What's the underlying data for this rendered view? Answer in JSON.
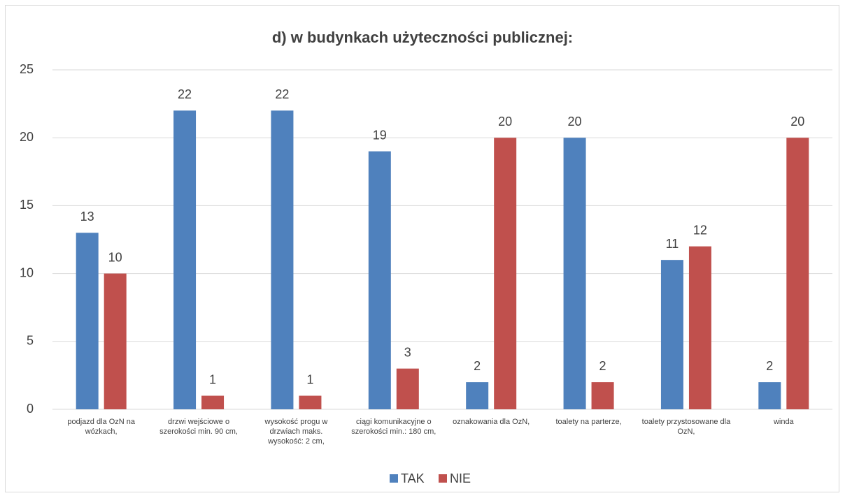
{
  "chart_data": {
    "type": "bar",
    "title": "d)  w budynkach użyteczności publicznej:",
    "categories": [
      "podjazd dla OzN na wózkach,",
      "drzwi wejściowe o szerokości min. 90 cm,",
      "wysokość progu w drzwiach maks. wysokość: 2 cm,",
      "ciągi komunikacyjne o szerokości min.: 180 cm,",
      "oznakowania dla OzN,",
      "toalety na parterze,",
      "toalety przystosowane dla OzN,",
      "winda"
    ],
    "series": [
      {
        "name": "TAK",
        "color": "#4f81bd",
        "values": [
          13,
          22,
          22,
          19,
          2,
          20,
          11,
          2
        ]
      },
      {
        "name": "NIE",
        "color": "#c0504d",
        "values": [
          10,
          1,
          1,
          3,
          20,
          2,
          12,
          20
        ]
      }
    ],
    "ylim": [
      0,
      25
    ],
    "yticks": [
      0,
      5,
      10,
      15,
      20,
      25
    ],
    "grid": true,
    "legend": "bottom"
  }
}
